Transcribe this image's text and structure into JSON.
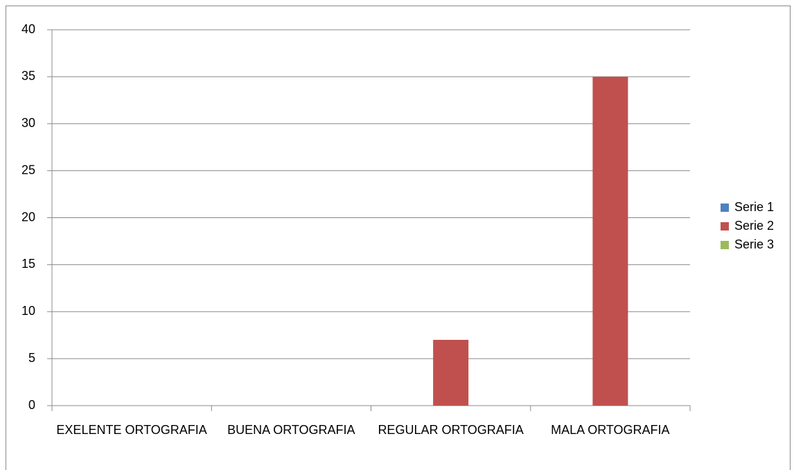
{
  "chart_data": {
    "type": "bar",
    "categories": [
      "EXELENTE ORTOGRAFIA",
      "BUENA ORTOGRAFIA",
      "REGULAR ORTOGRAFIA",
      "MALA ORTOGRAFIA"
    ],
    "series": [
      {
        "name": "Serie 1",
        "color": "#4f81bd",
        "values": [
          null,
          null,
          null,
          null
        ]
      },
      {
        "name": "Serie 2",
        "color": "#c0504d",
        "values": [
          null,
          null,
          7,
          35
        ]
      },
      {
        "name": "Serie 3",
        "color": "#9bbb59",
        "values": [
          null,
          null,
          null,
          null
        ]
      }
    ],
    "ylim": [
      0,
      40
    ],
    "yticks": [
      0,
      5,
      10,
      15,
      20,
      25,
      30,
      35,
      40
    ],
    "grid": true,
    "legend": "right"
  }
}
